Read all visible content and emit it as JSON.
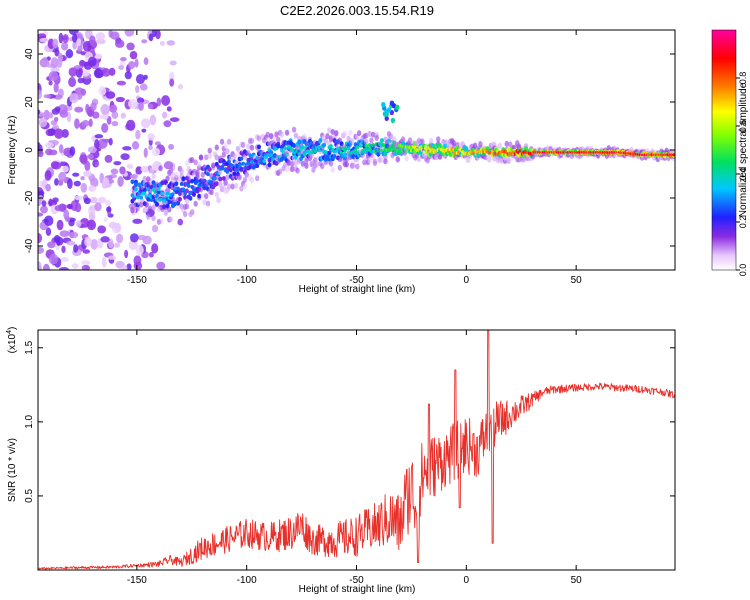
{
  "figure_title": "C2E2.2026.003.15.54.R19",
  "colors": {
    "snr_line": "#e8302a",
    "axis": "#000000",
    "background": "#ffffff"
  },
  "chart_data": [
    {
      "type": "heatmap",
      "title": "C2E2.2026.003.15.54.R19",
      "xlabel": "Height of straight line (km)",
      "ylabel": "Frequency (Hz)",
      "xlim": [
        -195,
        95
      ],
      "ylim": [
        -50,
        50
      ],
      "x_ticks": [
        -150,
        -100,
        -50,
        0,
        50
      ],
      "x_tick_labels": [
        "-150",
        "-100",
        "-50",
        "0",
        "50"
      ],
      "y_ticks": [
        -40,
        -20,
        0,
        20,
        40
      ],
      "y_tick_labels": [
        "-40",
        "-20",
        "0",
        "20",
        "40"
      ],
      "colorbar": {
        "label": "Normalized spectral amplitude",
        "range": [
          0,
          1
        ],
        "ticks": [
          0.0,
          0.2,
          0.4,
          0.6,
          0.8
        ],
        "tick_labels": [
          "0.0",
          "0.2",
          "0.4",
          "0.6",
          "0.8"
        ],
        "colormap": "rainbow (white-violet-blue-cyan-green-yellow-red-magenta)"
      },
      "ridge": {
        "x": [
          -150,
          -140,
          -130,
          -120,
          -110,
          -100,
          -90,
          -80,
          -70,
          -60,
          -50,
          -40,
          -30,
          -20,
          -10,
          0,
          10,
          20,
          30,
          40,
          50,
          60,
          70,
          80,
          90,
          95
        ],
        "frequency": [
          -18,
          -19,
          -17,
          -13,
          -8,
          -5,
          -2,
          0,
          0,
          0,
          0,
          1,
          1,
          0,
          0,
          -1,
          -1,
          -1,
          -1,
          -1,
          -1,
          -1,
          -1,
          -2,
          -2,
          -2
        ],
        "amplitude": [
          0.35,
          0.4,
          0.3,
          0.3,
          0.3,
          0.3,
          0.35,
          0.4,
          0.4,
          0.4,
          0.45,
          0.5,
          0.55,
          0.7,
          0.75,
          0.75,
          0.8,
          0.9,
          0.95,
          0.95,
          0.95,
          0.95,
          0.95,
          0.95,
          0.95,
          0.95
        ],
        "width_hz": [
          6,
          7,
          7,
          7,
          7,
          6,
          6,
          5,
          5,
          5,
          4,
          4,
          3,
          2.5,
          2.5,
          2,
          2,
          2,
          2,
          2,
          2,
          2,
          2,
          2,
          2.5,
          2.5
        ]
      },
      "noise_region_x": [
        -195,
        -130
      ],
      "side_blob": {
        "x": -35,
        "frequency": 16,
        "amplitude": 0.45
      }
    },
    {
      "type": "line",
      "xlabel": "Height of straight line (km)",
      "ylabel": "SNR (10 * v/v)",
      "y_scale_label": "(x10",
      "y_scale_exponent": "4",
      "y_scale_suffix": ")",
      "xlim": [
        -195,
        95
      ],
      "ylim": [
        0,
        1.62
      ],
      "x_ticks": [
        -150,
        -100,
        -50,
        0,
        50
      ],
      "x_tick_labels": [
        "-150",
        "-100",
        "-50",
        "0",
        "50"
      ],
      "y_ticks": [
        0.5,
        1.0,
        1.5
      ],
      "y_tick_labels": [
        "0.5",
        "1.0",
        "1.5"
      ],
      "series": [
        {
          "name": "SNR",
          "x": [
            -195,
            -180,
            -160,
            -150,
            -140,
            -135,
            -130,
            -125,
            -120,
            -110,
            -100,
            -90,
            -80,
            -75,
            -70,
            -60,
            -50,
            -45,
            -40,
            -35,
            -30,
            -28,
            -25,
            -22,
            -20,
            -15,
            -10,
            -5,
            0,
            5,
            10,
            15,
            20,
            25,
            30,
            35,
            40,
            50,
            60,
            70,
            80,
            90,
            95
          ],
          "y": [
            0.01,
            0.015,
            0.02,
            0.03,
            0.04,
            0.07,
            0.05,
            0.1,
            0.15,
            0.2,
            0.25,
            0.22,
            0.25,
            0.3,
            0.2,
            0.2,
            0.23,
            0.27,
            0.3,
            0.35,
            0.3,
            0.45,
            0.55,
            0.4,
            0.65,
            0.7,
            0.75,
            0.8,
            0.85,
            0.8,
            0.95,
            1.0,
            1.05,
            1.1,
            1.15,
            1.2,
            1.22,
            1.23,
            1.24,
            1.23,
            1.22,
            1.2,
            1.18
          ],
          "noise": [
            0.005,
            0.008,
            0.01,
            0.012,
            0.02,
            0.03,
            0.03,
            0.06,
            0.08,
            0.09,
            0.1,
            0.1,
            0.12,
            0.13,
            0.1,
            0.12,
            0.14,
            0.15,
            0.17,
            0.2,
            0.22,
            0.25,
            0.28,
            0.25,
            0.25,
            0.22,
            0.2,
            0.2,
            0.2,
            0.18,
            0.18,
            0.15,
            0.1,
            0.08,
            0.05,
            0.03,
            0.03,
            0.025,
            0.025,
            0.025,
            0.025,
            0.025,
            0.025
          ]
        }
      ],
      "spikes": [
        {
          "x": -17,
          "y": 1.12
        },
        {
          "x": -5,
          "y": 1.35
        },
        {
          "x": 10,
          "y": 1.62
        },
        {
          "x": 12,
          "y": 0.18
        },
        {
          "x": -22,
          "y": 0.05
        },
        {
          "x": -3,
          "y": 0.42
        }
      ]
    }
  ]
}
